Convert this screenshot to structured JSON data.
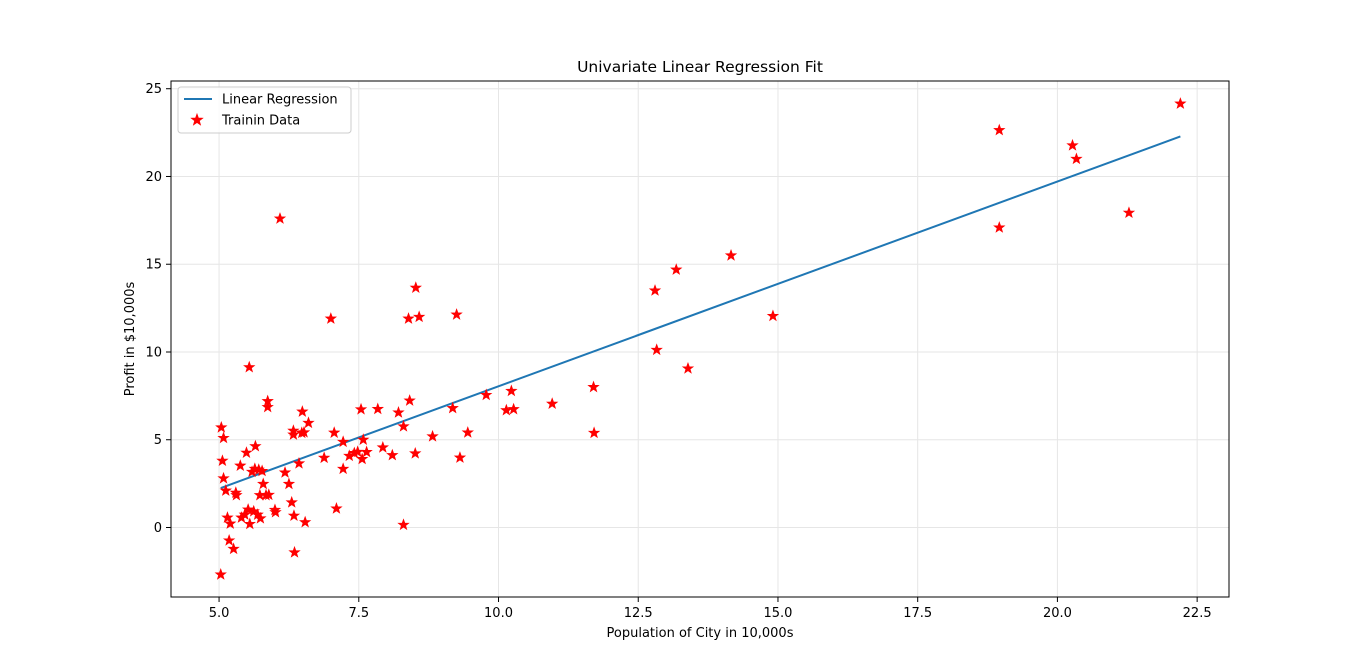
{
  "chart_data": {
    "type": "scatter",
    "title": "Univariate Linear Regression Fit",
    "xlabel": "Population of City in 10,000s",
    "ylabel": "Profit in $10,000s",
    "xlim": [
      4.14,
      23.07
    ],
    "ylim": [
      -3.96,
      25.44
    ],
    "grid": true,
    "legend_position": "top-left",
    "x_ticks": [
      "5.0",
      "7.5",
      "10.0",
      "12.5",
      "15.0",
      "17.5",
      "20.0",
      "22.5"
    ],
    "x_tick_values": [
      5.0,
      7.5,
      10.0,
      12.5,
      15.0,
      17.5,
      20.0,
      22.5
    ],
    "y_ticks": [
      "0",
      "5",
      "10",
      "15",
      "20",
      "25"
    ],
    "y_tick_values": [
      0,
      5,
      10,
      15,
      20,
      25
    ],
    "series": [
      {
        "name": "Linear Regression",
        "kind": "line",
        "color": "#1f77b4",
        "x": [
          5.03,
          22.2
        ],
        "y": [
          2.25,
          22.28
        ]
      },
      {
        "name": "Trainin Data",
        "kind": "scatter",
        "marker": "star",
        "color": "#ff0000",
        "points": [
          [
            5.03,
            -2.68
          ],
          [
            5.04,
            5.7
          ],
          [
            5.06,
            3.8
          ],
          [
            5.08,
            5.1
          ],
          [
            5.08,
            2.8
          ],
          [
            5.12,
            2.1
          ],
          [
            5.15,
            0.56
          ],
          [
            5.18,
            -0.74
          ],
          [
            5.2,
            0.22
          ],
          [
            5.26,
            -1.22
          ],
          [
            5.3,
            1.98
          ],
          [
            5.31,
            1.84
          ],
          [
            5.38,
            3.52
          ],
          [
            5.4,
            0.56
          ],
          [
            5.46,
            0.73
          ],
          [
            5.49,
            4.26
          ],
          [
            5.52,
            1.02
          ],
          [
            5.54,
            9.13
          ],
          [
            5.55,
            0.2
          ],
          [
            5.59,
            3.17
          ],
          [
            5.62,
            0.92
          ],
          [
            5.64,
            3.34
          ],
          [
            5.65,
            4.63
          ],
          [
            5.69,
            0.73
          ],
          [
            5.71,
            3.29
          ],
          [
            5.73,
            1.84
          ],
          [
            5.74,
            0.52
          ],
          [
            5.77,
            3.22
          ],
          [
            5.79,
            2.48
          ],
          [
            5.84,
            1.84
          ],
          [
            5.87,
            7.2
          ],
          [
            5.87,
            6.86
          ],
          [
            5.89,
            1.86
          ],
          [
            6.0,
            1.0
          ],
          [
            6.01,
            0.87
          ],
          [
            6.09,
            17.6
          ],
          [
            6.18,
            3.13
          ],
          [
            6.25,
            2.48
          ],
          [
            6.3,
            1.43
          ],
          [
            6.33,
            5.29
          ],
          [
            6.33,
            5.51
          ],
          [
            6.34,
            0.67
          ],
          [
            6.35,
            -1.42
          ],
          [
            6.43,
            3.65
          ],
          [
            6.48,
            5.39
          ],
          [
            6.49,
            6.6
          ],
          [
            6.52,
            5.42
          ],
          [
            6.54,
            0.3
          ],
          [
            6.6,
            5.96
          ],
          [
            6.88,
            3.97
          ],
          [
            7.0,
            11.9
          ],
          [
            7.06,
            5.4
          ],
          [
            7.1,
            1.08
          ],
          [
            7.22,
            4.88
          ],
          [
            7.22,
            3.34
          ],
          [
            7.33,
            4.08
          ],
          [
            7.42,
            4.24
          ],
          [
            7.48,
            4.31
          ],
          [
            7.54,
            6.73
          ],
          [
            7.56,
            3.9
          ],
          [
            7.58,
            5.0
          ],
          [
            7.64,
            4.3
          ],
          [
            7.84,
            6.75
          ],
          [
            7.93,
            4.56
          ],
          [
            8.1,
            4.12
          ],
          [
            8.21,
            6.55
          ],
          [
            8.3,
            5.76
          ],
          [
            8.3,
            0.15
          ],
          [
            8.39,
            11.9
          ],
          [
            8.41,
            7.23
          ],
          [
            8.51,
            4.22
          ],
          [
            8.52,
            13.66
          ],
          [
            8.58,
            12.0
          ],
          [
            8.82,
            5.19
          ],
          [
            9.18,
            6.8
          ],
          [
            9.25,
            12.13
          ],
          [
            9.31,
            3.98
          ],
          [
            9.45,
            5.41
          ],
          [
            9.78,
            7.55
          ],
          [
            10.14,
            6.68
          ],
          [
            10.23,
            7.78
          ],
          [
            10.27,
            6.74
          ],
          [
            10.96,
            7.05
          ],
          [
            11.7,
            8.0
          ],
          [
            11.71,
            5.39
          ],
          [
            12.8,
            13.5
          ],
          [
            12.83,
            10.12
          ],
          [
            13.18,
            14.69
          ],
          [
            13.39,
            9.06
          ],
          [
            14.16,
            15.5
          ],
          [
            14.91,
            12.05
          ],
          [
            18.96,
            22.64
          ],
          [
            18.96,
            17.09
          ],
          [
            20.27,
            21.77
          ],
          [
            20.34,
            21.0
          ],
          [
            21.28,
            17.93
          ],
          [
            22.2,
            24.15
          ]
        ]
      }
    ]
  }
}
